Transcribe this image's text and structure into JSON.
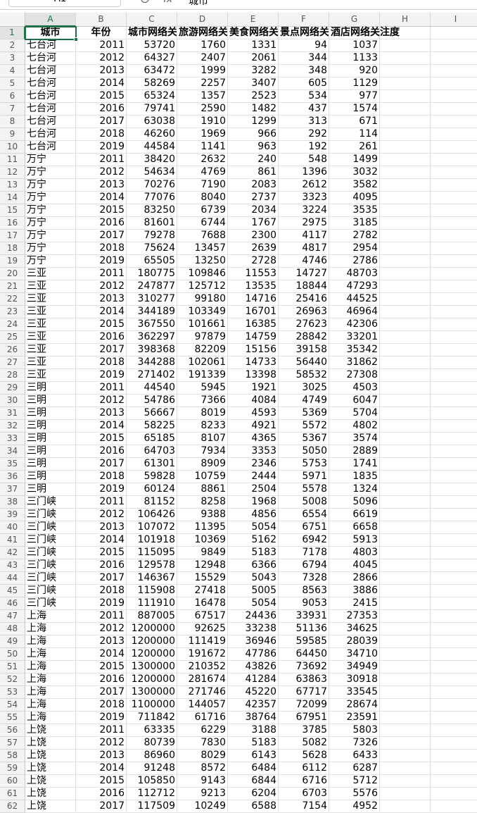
{
  "toolbar": {
    "name_box": "A1",
    "fx": "fx",
    "formula": "城市"
  },
  "column_letters": [
    "A",
    "B",
    "C",
    "D",
    "E",
    "F",
    "G",
    "H",
    "I"
  ],
  "row_numbers": [
    1,
    2,
    3,
    4,
    5,
    6,
    7,
    8,
    9,
    10,
    11,
    12,
    13,
    14,
    15,
    16,
    17,
    18,
    19,
    20,
    21,
    22,
    23,
    24,
    25,
    26,
    27,
    28,
    29,
    30,
    31,
    32,
    33,
    34,
    35,
    36,
    37,
    38,
    39,
    40,
    41,
    42,
    43,
    44,
    45,
    46,
    47,
    48,
    49,
    50,
    51,
    52,
    53,
    54,
    55,
    56,
    57,
    58,
    59,
    60,
    61,
    62
  ],
  "table": {
    "header": [
      "城市",
      "年份",
      "城市网络关注度",
      "旅游网络关注度",
      "美食网络关注度",
      "景点网络关注度",
      "酒店网络关注度"
    ],
    "rows": [
      [
        "七台河",
        2011,
        53720,
        1760,
        1331,
        94,
        1037
      ],
      [
        "七台河",
        2012,
        64327,
        2407,
        2061,
        344,
        1133
      ],
      [
        "七台河",
        2013,
        63472,
        1999,
        3282,
        348,
        920
      ],
      [
        "七台河",
        2014,
        58269,
        2257,
        3407,
        605,
        1129
      ],
      [
        "七台河",
        2015,
        65324,
        1357,
        2523,
        534,
        977
      ],
      [
        "七台河",
        2016,
        79741,
        2590,
        1482,
        437,
        1574
      ],
      [
        "七台河",
        2017,
        63038,
        1910,
        1299,
        313,
        671
      ],
      [
        "七台河",
        2018,
        46260,
        1969,
        966,
        292,
        114
      ],
      [
        "七台河",
        2019,
        44584,
        1141,
        963,
        192,
        261
      ],
      [
        "万宁",
        2011,
        38420,
        2632,
        240,
        548,
        1499
      ],
      [
        "万宁",
        2012,
        54634,
        4769,
        861,
        1396,
        3032
      ],
      [
        "万宁",
        2013,
        70276,
        7190,
        2083,
        2612,
        3582
      ],
      [
        "万宁",
        2014,
        77076,
        8040,
        2737,
        3323,
        4095
      ],
      [
        "万宁",
        2015,
        83250,
        6739,
        2034,
        3224,
        3535
      ],
      [
        "万宁",
        2016,
        81601,
        6744,
        1767,
        2975,
        3185
      ],
      [
        "万宁",
        2017,
        79278,
        7688,
        2300,
        4117,
        2782
      ],
      [
        "万宁",
        2018,
        75624,
        13457,
        2639,
        4817,
        2954
      ],
      [
        "万宁",
        2019,
        65505,
        13250,
        2728,
        4746,
        2786
      ],
      [
        "三亚",
        2011,
        180775,
        109846,
        11553,
        14727,
        48703
      ],
      [
        "三亚",
        2012,
        247877,
        125712,
        13535,
        18844,
        47293
      ],
      [
        "三亚",
        2013,
        310277,
        99180,
        14716,
        25416,
        44525
      ],
      [
        "三亚",
        2014,
        344189,
        103349,
        16701,
        26963,
        46964
      ],
      [
        "三亚",
        2015,
        367550,
        101661,
        16385,
        27623,
        42306
      ],
      [
        "三亚",
        2016,
        362297,
        97879,
        14759,
        28842,
        33201
      ],
      [
        "三亚",
        2017,
        398368,
        82209,
        15156,
        39158,
        35342
      ],
      [
        "三亚",
        2018,
        344288,
        102061,
        14733,
        56440,
        31862
      ],
      [
        "三亚",
        2019,
        271402,
        191339,
        13398,
        58532,
        27308
      ],
      [
        "三明",
        2011,
        44540,
        5945,
        1921,
        3025,
        4503
      ],
      [
        "三明",
        2012,
        54786,
        7366,
        4084,
        4749,
        6047
      ],
      [
        "三明",
        2013,
        56667,
        8019,
        4593,
        5369,
        5704
      ],
      [
        "三明",
        2014,
        58225,
        8233,
        4921,
        5572,
        4802
      ],
      [
        "三明",
        2015,
        65185,
        8107,
        4365,
        5367,
        3574
      ],
      [
        "三明",
        2016,
        64703,
        7934,
        3353,
        5050,
        2889
      ],
      [
        "三明",
        2017,
        61301,
        8909,
        2346,
        5753,
        1741
      ],
      [
        "三明",
        2018,
        59828,
        10759,
        2444,
        5971,
        1835
      ],
      [
        "三明",
        2019,
        60124,
        8861,
        2504,
        5578,
        1324
      ],
      [
        "三门峡",
        2011,
        81152,
        8258,
        1968,
        5008,
        5096
      ],
      [
        "三门峡",
        2012,
        106426,
        9388,
        4856,
        6554,
        6619
      ],
      [
        "三门峡",
        2013,
        107072,
        11395,
        5054,
        6751,
        6658
      ],
      [
        "三门峡",
        2014,
        101918,
        10369,
        5162,
        6942,
        5913
      ],
      [
        "三门峡",
        2015,
        115095,
        9849,
        5183,
        7178,
        4803
      ],
      [
        "三门峡",
        2016,
        129578,
        12948,
        6366,
        6794,
        4045
      ],
      [
        "三门峡",
        2017,
        146367,
        15529,
        5043,
        7328,
        2866
      ],
      [
        "三门峡",
        2018,
        115908,
        27418,
        5005,
        8563,
        3886
      ],
      [
        "三门峡",
        2019,
        111910,
        16478,
        5054,
        9053,
        2415
      ],
      [
        "上海",
        2011,
        887005,
        67517,
        24436,
        33931,
        27353
      ],
      [
        "上海",
        2012,
        1200000,
        92625,
        33238,
        51136,
        34625
      ],
      [
        "上海",
        2013,
        1200000,
        111419,
        36946,
        59585,
        28039
      ],
      [
        "上海",
        2014,
        1200000,
        191672,
        47786,
        64450,
        34710
      ],
      [
        "上海",
        2015,
        1300000,
        210352,
        43826,
        73692,
        34949
      ],
      [
        "上海",
        2016,
        1200000,
        281674,
        41284,
        63863,
        30918
      ],
      [
        "上海",
        2017,
        1300000,
        271746,
        45220,
        67717,
        33545
      ],
      [
        "上海",
        2018,
        1100000,
        144057,
        42357,
        72099,
        28674
      ],
      [
        "上海",
        2019,
        711842,
        61716,
        38764,
        67951,
        23591
      ],
      [
        "上饶",
        2011,
        63335,
        6229,
        3188,
        3785,
        5803
      ],
      [
        "上饶",
        2012,
        80739,
        7830,
        5183,
        5082,
        7326
      ],
      [
        "上饶",
        2013,
        86960,
        8029,
        6143,
        5628,
        6433
      ],
      [
        "上饶",
        2014,
        91248,
        8572,
        6484,
        6112,
        6287
      ],
      [
        "上饶",
        2015,
        105850,
        9143,
        6844,
        6716,
        5712
      ],
      [
        "上饶",
        2016,
        112712,
        9213,
        6204,
        6703,
        5576
      ],
      [
        "上饶",
        2017,
        117509,
        10249,
        6588,
        7154,
        4952
      ]
    ]
  }
}
